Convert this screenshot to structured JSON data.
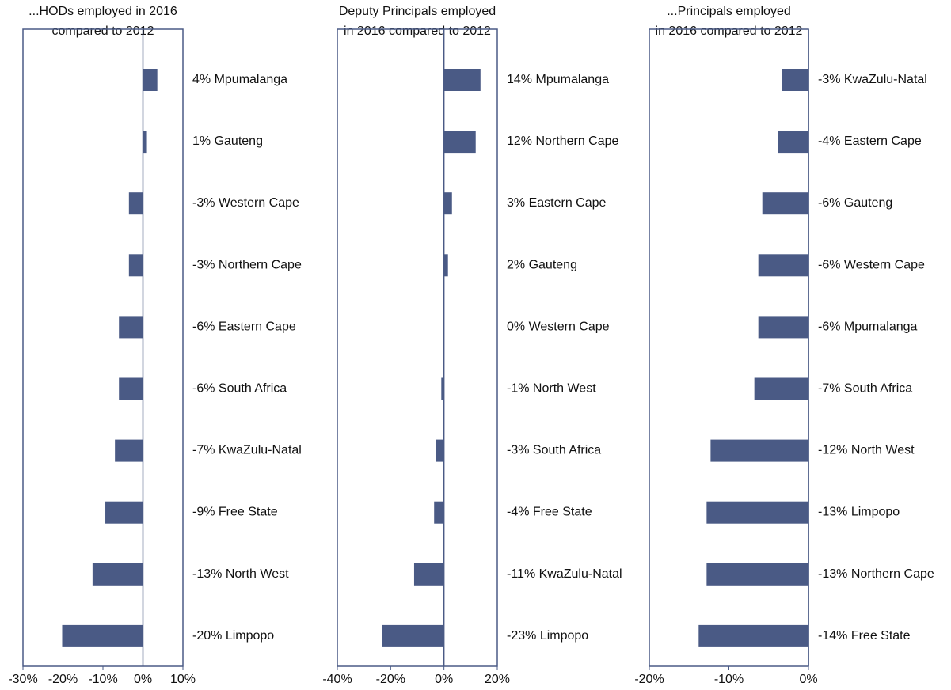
{
  "chart_data": [
    {
      "type": "bar",
      "orientation": "horizontal",
      "title": [
        "...HODs employed in 2016",
        "compared to 2012"
      ],
      "categories": [
        "Mpumalanga",
        "Gauteng",
        "Western Cape",
        "Northern Cape",
        "Eastern Cape",
        "South Africa",
        "KwaZulu-Natal",
        "Free State",
        "North West",
        "Limpopo"
      ],
      "values": [
        3.6,
        1.0,
        -3.5,
        -3.5,
        -6.0,
        -6.0,
        -7.0,
        -9.4,
        -12.6,
        -20.2
      ],
      "value_labels": [
        "4%",
        "1%",
        "-3%",
        "-3%",
        "-6%",
        "-6%",
        "-7%",
        "-9%",
        "-13%",
        "-20%"
      ],
      "color": "#4a5a85",
      "xlim": [
        -30,
        10
      ],
      "xticks": [
        {
          "value": -30,
          "label": "-30%"
        },
        {
          "value": -20,
          "label": "-20%"
        },
        {
          "value": -10,
          "label": "-10%"
        },
        {
          "value": 0,
          "label": "0%"
        },
        {
          "value": 10,
          "label": "10%"
        }
      ]
    },
    {
      "type": "bar",
      "orientation": "horizontal",
      "title": [
        "Deputy Principals employed",
        "in 2016 compared to 2012"
      ],
      "categories": [
        "Mpumalanga",
        "Northern Cape",
        "Eastern Cape",
        "Gauteng",
        "Western Cape",
        "North West",
        "South Africa",
        "Free State",
        "KwaZulu-Natal",
        "Limpopo"
      ],
      "values": [
        13.7,
        11.9,
        3.0,
        1.5,
        0.0,
        -1.0,
        -3.0,
        -3.7,
        -11.2,
        -23.1
      ],
      "value_labels": [
        "14%",
        "12%",
        "3%",
        "2%",
        "0%",
        "-1%",
        "-3%",
        "-4%",
        "-11%",
        "-23%"
      ],
      "color": "#4a5a85",
      "xlim": [
        -40,
        20
      ],
      "xticks": [
        {
          "value": -40,
          "label": "-40%"
        },
        {
          "value": -20,
          "label": "-20%"
        },
        {
          "value": 0,
          "label": "0%"
        },
        {
          "value": 20,
          "label": "20%"
        }
      ]
    },
    {
      "type": "bar",
      "orientation": "horizontal",
      "title": [
        "...Principals employed",
        "in 2016 compared to 2012"
      ],
      "categories": [
        "KwaZulu-Natal",
        "Eastern Cape",
        "Gauteng",
        "Western Cape",
        "Mpumalanga",
        "South Africa",
        "North West",
        "Limpopo",
        "Northern Cape",
        "Free State"
      ],
      "values": [
        -3.3,
        -3.8,
        -5.8,
        -6.3,
        -6.3,
        -6.8,
        -12.3,
        -12.8,
        -12.8,
        -13.8
      ],
      "value_labels": [
        "-3%",
        "-4%",
        "-6%",
        "-6%",
        "-6%",
        "-7%",
        "-12%",
        "-13%",
        "-13%",
        "-14%"
      ],
      "color": "#4a5a85",
      "xlim": [
        -20,
        0
      ],
      "xticks": [
        {
          "value": -20,
          "label": "-20%"
        },
        {
          "value": -10,
          "label": "-10%"
        },
        {
          "value": 0,
          "label": "0%"
        }
      ]
    }
  ]
}
